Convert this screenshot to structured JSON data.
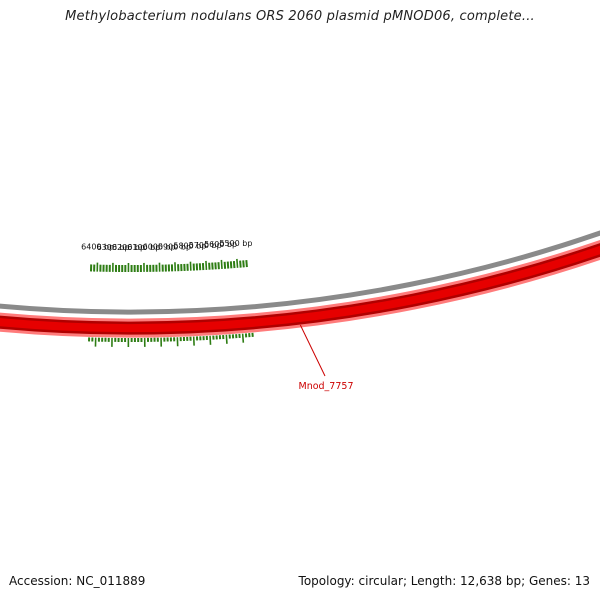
{
  "title": "Methylobacterium nodulans ORS 2060 plasmid pMNOD06, complete...",
  "scale_labels": [
    {
      "bp": 6400,
      "text": "6400 bp"
    },
    {
      "bp": 6300,
      "text": "6300 bp"
    },
    {
      "bp": 6200,
      "text": "6200 bp"
    },
    {
      "bp": 6100,
      "text": "6100 bp"
    },
    {
      "bp": 6000,
      "text": "6000 bp"
    },
    {
      "bp": 5900,
      "text": "5900 bp"
    },
    {
      "bp": 5800,
      "text": "5800 bp"
    },
    {
      "bp": 5700,
      "text": "5700 bp"
    },
    {
      "bp": 5600,
      "text": "5600 bp"
    },
    {
      "bp": 5500,
      "text": "5500 bp"
    }
  ],
  "gene": {
    "name": "Mnod_7757",
    "color": "#cc0000"
  },
  "colors": {
    "tick": "#2e7d14",
    "backbone": "#8a8a8a",
    "gene_fill": "#e60000",
    "gene_dark": "#b00000",
    "gene_halo": "#ff7b7b"
  },
  "footer": {
    "accession": "Accession: NC_011889",
    "info": "Topology: circular; Length: 12,638 bp; Genes: 13"
  }
}
